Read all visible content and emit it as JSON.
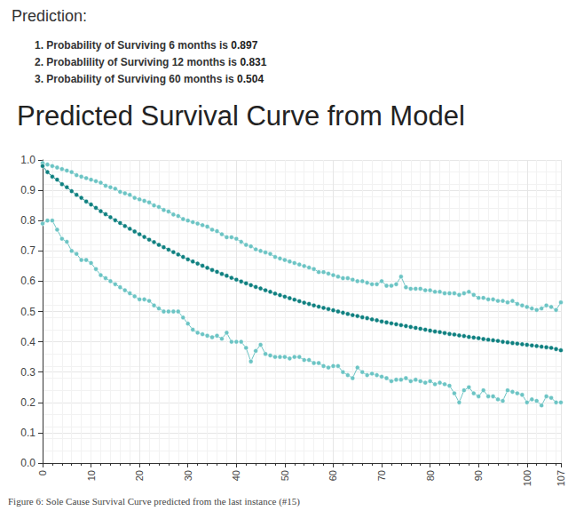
{
  "chart_data": {
    "type": "line",
    "subtitle": "Prediction:",
    "annotations": [
      {
        "text": "1. Probability of Surviving 6 months is",
        "value": 0.897
      },
      {
        "text": "2. Probablility of Surviving 12 months is",
        "value": 0.831
      },
      {
        "text": "3. Probability of Surviving 60 months is",
        "value": 0.504
      }
    ],
    "title": "Predicted Survival Curve from Model",
    "caption": "Figure 6: Sole Cause Survival Curve predicted from the last instance (#15)",
    "x": [
      0,
      1,
      2,
      3,
      4,
      5,
      6,
      7,
      8,
      9,
      10,
      11,
      12,
      13,
      14,
      15,
      16,
      17,
      18,
      19,
      20,
      21,
      22,
      23,
      24,
      25,
      26,
      27,
      28,
      29,
      30,
      31,
      32,
      33,
      34,
      35,
      36,
      37,
      38,
      39,
      40,
      41,
      42,
      43,
      44,
      45,
      46,
      47,
      48,
      49,
      50,
      51,
      52,
      53,
      54,
      55,
      56,
      57,
      58,
      59,
      60,
      61,
      62,
      63,
      64,
      65,
      66,
      67,
      68,
      69,
      70,
      71,
      72,
      73,
      74,
      75,
      76,
      77,
      78,
      79,
      80,
      81,
      82,
      83,
      84,
      85,
      86,
      87,
      88,
      89,
      90,
      91,
      92,
      93,
      94,
      95,
      96,
      97,
      98,
      99,
      100,
      101,
      102,
      103,
      104,
      105,
      106,
      107
    ],
    "series": [
      {
        "color": "#6cc4c4",
        "marker": "circle",
        "line_style": "solid",
        "values": [
          0.99,
          0.985,
          0.98,
          0.975,
          0.97,
          0.965,
          0.96,
          0.95,
          0.945,
          0.94,
          0.935,
          0.93,
          0.925,
          0.915,
          0.91,
          0.905,
          0.895,
          0.89,
          0.885,
          0.875,
          0.87,
          0.865,
          0.86,
          0.85,
          0.845,
          0.835,
          0.83,
          0.82,
          0.815,
          0.805,
          0.8,
          0.795,
          0.79,
          0.785,
          0.78,
          0.77,
          0.765,
          0.755,
          0.745,
          0.745,
          0.74,
          0.73,
          0.72,
          0.715,
          0.705,
          0.7,
          0.695,
          0.69,
          0.68,
          0.675,
          0.67,
          0.665,
          0.66,
          0.655,
          0.65,
          0.645,
          0.64,
          0.63,
          0.63,
          0.625,
          0.62,
          0.615,
          0.61,
          0.61,
          0.605,
          0.6,
          0.6,
          0.595,
          0.59,
          0.59,
          0.6,
          0.585,
          0.585,
          0.59,
          0.615,
          0.58,
          0.575,
          0.575,
          0.575,
          0.57,
          0.57,
          0.565,
          0.565,
          0.56,
          0.56,
          0.56,
          0.555,
          0.56,
          0.565,
          0.555,
          0.545,
          0.545,
          0.54,
          0.54,
          0.535,
          0.535,
          0.53,
          0.535,
          0.525,
          0.52,
          0.515,
          0.51,
          0.505,
          0.51,
          0.52,
          0.515,
          0.505,
          0.53
        ]
      },
      {
        "color": "#0f8080",
        "marker": "circle",
        "line_style": "solid",
        "values": [
          0.98,
          0.96,
          0.945,
          0.935,
          0.92,
          0.91,
          0.897,
          0.885,
          0.875,
          0.863,
          0.853,
          0.842,
          0.831,
          0.821,
          0.811,
          0.801,
          0.792,
          0.782,
          0.773,
          0.764,
          0.755,
          0.746,
          0.737,
          0.729,
          0.72,
          0.712,
          0.704,
          0.696,
          0.688,
          0.68,
          0.672,
          0.665,
          0.658,
          0.651,
          0.644,
          0.637,
          0.631,
          0.624,
          0.618,
          0.611,
          0.605,
          0.599,
          0.593,
          0.587,
          0.581,
          0.576,
          0.57,
          0.565,
          0.559,
          0.554,
          0.549,
          0.544,
          0.539,
          0.534,
          0.529,
          0.525,
          0.52,
          0.516,
          0.512,
          0.508,
          0.504,
          0.5,
          0.496,
          0.492,
          0.488,
          0.485,
          0.481,
          0.478,
          0.474,
          0.471,
          0.467,
          0.464,
          0.461,
          0.458,
          0.455,
          0.452,
          0.449,
          0.446,
          0.443,
          0.44,
          0.437,
          0.434,
          0.432,
          0.429,
          0.426,
          0.424,
          0.421,
          0.419,
          0.416,
          0.414,
          0.412,
          0.409,
          0.407,
          0.405,
          0.403,
          0.4,
          0.398,
          0.396,
          0.394,
          0.392,
          0.39,
          0.388,
          0.386,
          0.384,
          0.382,
          0.38,
          0.376,
          0.372
        ]
      },
      {
        "color": "#6cc4c4",
        "marker": "circle",
        "line_style": "solid",
        "values": [
          0.79,
          0.8,
          0.8,
          0.77,
          0.74,
          0.73,
          0.7,
          0.69,
          0.67,
          0.67,
          0.66,
          0.64,
          0.62,
          0.61,
          0.6,
          0.59,
          0.58,
          0.57,
          0.56,
          0.55,
          0.54,
          0.54,
          0.535,
          0.52,
          0.51,
          0.5,
          0.5,
          0.5,
          0.5,
          0.48,
          0.46,
          0.44,
          0.43,
          0.425,
          0.42,
          0.415,
          0.42,
          0.41,
          0.43,
          0.4,
          0.4,
          0.4,
          0.38,
          0.335,
          0.37,
          0.39,
          0.36,
          0.355,
          0.35,
          0.35,
          0.35,
          0.345,
          0.35,
          0.35,
          0.34,
          0.34,
          0.33,
          0.33,
          0.32,
          0.315,
          0.32,
          0.32,
          0.3,
          0.29,
          0.28,
          0.315,
          0.3,
          0.29,
          0.295,
          0.29,
          0.285,
          0.28,
          0.27,
          0.275,
          0.275,
          0.28,
          0.27,
          0.275,
          0.27,
          0.265,
          0.27,
          0.26,
          0.265,
          0.26,
          0.255,
          0.23,
          0.2,
          0.24,
          0.25,
          0.23,
          0.22,
          0.24,
          0.22,
          0.22,
          0.21,
          0.205,
          0.24,
          0.235,
          0.23,
          0.225,
          0.2,
          0.21,
          0.205,
          0.19,
          0.22,
          0.215,
          0.2,
          0.2
        ]
      }
    ],
    "xlim": [
      0,
      107
    ],
    "xticks": [
      0,
      10,
      20,
      30,
      40,
      50,
      60,
      70,
      80,
      90,
      100,
      107
    ],
    "ylim": [
      0,
      1
    ],
    "yticks": [
      {
        "value": 0,
        "label": "0.0"
      },
      0.1,
      0.2,
      0.3,
      0.4,
      0.5,
      0.6,
      0.7,
      0.8,
      0.9,
      {
        "value": 1,
        "label": "1.0"
      }
    ],
    "grid": true
  }
}
